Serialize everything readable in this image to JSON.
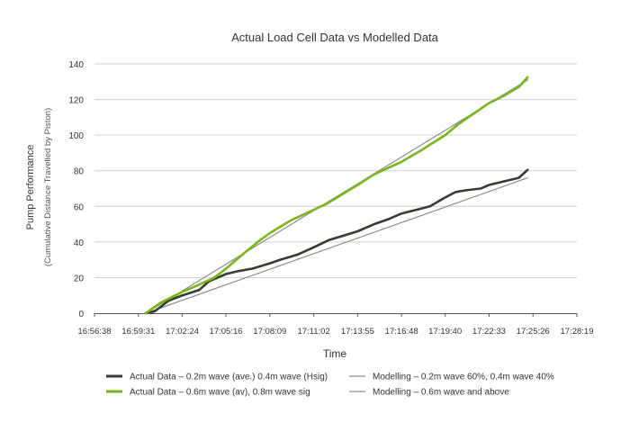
{
  "chart_data": {
    "type": "line",
    "title": "Actual Load Cell Data vs Modelled Data",
    "xlabel": "Time",
    "ylabel": "Pump Performance",
    "ylabel_sub": "(Cumulative Distance Travelled by Piston)",
    "x_ticks": [
      "16:56:38",
      "16:59:31",
      "17:02:24",
      "17:05:16",
      "17:08:09",
      "17:11:02",
      "17:13:55",
      "17:16:48",
      "17:19:40",
      "17:22:33",
      "17:25:26",
      "17:28:19"
    ],
    "y_ticks": [
      0,
      20,
      40,
      60,
      80,
      100,
      120,
      140
    ],
    "ylim": [
      0,
      140
    ],
    "xlim": [
      "16:56:38",
      "17:28:19"
    ],
    "grid": "horizontal",
    "legend_position": "bottom",
    "series": [
      {
        "name": "Actual Data – 0.2m wave (ave.) 0.4m wave (Hsig)",
        "color": "#3a3a32",
        "style": "thick",
        "x": [
          "17:00:00",
          "17:00:35",
          "17:01:30",
          "17:02:24",
          "17:03:30",
          "17:04:10",
          "17:05:16",
          "17:06:00",
          "17:07:00",
          "17:08:09",
          "17:08:50",
          "17:10:00",
          "17:11:02",
          "17:12:00",
          "17:13:10",
          "17:13:55",
          "17:15:00",
          "17:16:00",
          "17:16:48",
          "17:17:45",
          "17:18:40",
          "17:19:40",
          "17:20:20",
          "17:21:00",
          "17:22:00",
          "17:22:33",
          "17:23:30",
          "17:24:30",
          "17:25:05"
        ],
        "values": [
          0,
          1,
          7,
          10,
          13,
          18,
          22,
          23.5,
          25,
          28,
          30,
          33,
          37,
          41,
          44,
          46,
          50,
          53,
          56,
          58,
          60,
          65,
          68,
          69,
          70,
          72,
          74,
          76,
          80.5
        ]
      },
      {
        "name": "Actual Data – 0.6m wave (av), 0.8m wave sig",
        "color": "#7ab51d",
        "style": "thick",
        "x": [
          "17:00:00",
          "17:01:00",
          "17:02:24",
          "17:03:30",
          "17:04:30",
          "17:05:16",
          "17:06:30",
          "17:07:30",
          "17:08:09",
          "17:09:30",
          "17:11:02",
          "17:12:00",
          "17:13:55",
          "17:15:00",
          "17:16:48",
          "17:18:00",
          "17:19:40",
          "17:20:30",
          "17:22:33",
          "17:23:30",
          "17:24:30",
          "17:25:05"
        ],
        "values": [
          0,
          6,
          12,
          16,
          20,
          25,
          34,
          41,
          45,
          52,
          58,
          62,
          72,
          78,
          85,
          91,
          100,
          106,
          118,
          122,
          127,
          132.5
        ]
      },
      {
        "name": "Modelling – 0.2m wave 60%, 0.4m wave 40%",
        "color": "#8c8c8c",
        "style": "thin",
        "x": [
          "17:00:00",
          "17:25:05"
        ],
        "values": [
          0,
          76
        ]
      },
      {
        "name": "Modelling – 0.6m wave and above",
        "color": "#8c8c8c",
        "style": "thin",
        "x": [
          "17:00:00",
          "17:25:05"
        ],
        "values": [
          0,
          131
        ]
      }
    ]
  }
}
